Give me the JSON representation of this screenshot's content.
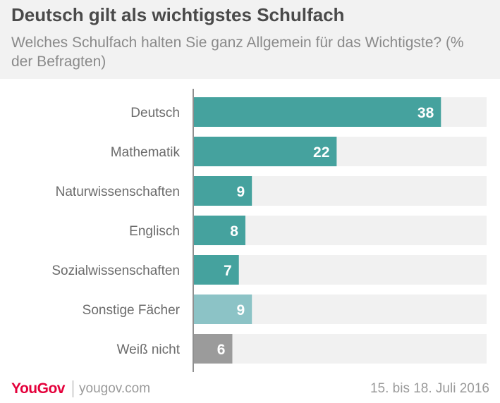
{
  "header": {
    "title": "Deutsch gilt als wichtigstes Schulfach",
    "subtitle": "Welches Schulfach halten Sie ganz Allgemein für das Wichtigste? (% der Befragten)"
  },
  "chart_data": {
    "type": "bar",
    "orientation": "horizontal",
    "categories": [
      "Deutsch",
      "Mathematik",
      "Naturwissenschaften",
      "Englisch",
      "Sozialwissenschaften",
      "Sonstige Fächer",
      "Weiß nicht"
    ],
    "values": [
      38,
      22,
      9,
      8,
      7,
      9,
      6
    ],
    "bar_colors": [
      "#45a29e",
      "#45a29e",
      "#45a29e",
      "#45a29e",
      "#45a29e",
      "#8cc3c6",
      "#9b9b9b"
    ],
    "track_color": "#f1f1f1",
    "xlim": [
      0,
      45
    ],
    "title": "Deutsch gilt als wichtigstes Schulfach",
    "xlabel": "",
    "ylabel": "",
    "grid": false,
    "legend": "none"
  },
  "footer": {
    "brand": "YouGov",
    "site": "yougov.com",
    "date": "15. bis 18. Juli 2016"
  },
  "colors": {
    "brand": "#e4003b",
    "bar": "#45a29e",
    "bar_other": "#8cc3c6",
    "bar_unknown": "#9b9b9b"
  }
}
